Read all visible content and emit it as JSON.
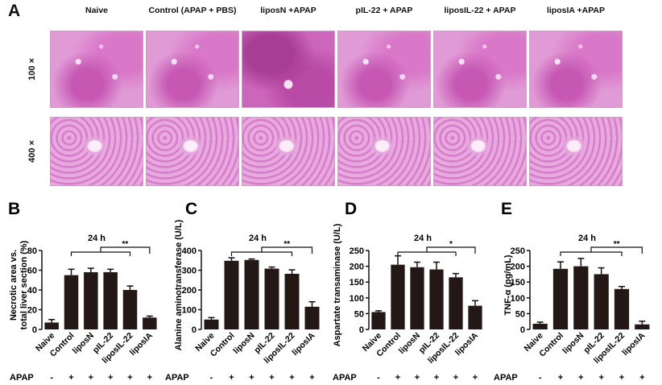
{
  "panel_a": {
    "letter": "A",
    "columns": [
      "Naive",
      "Control (APAP + PBS)",
      "liposN +APAP",
      "pIL-22 + APAP",
      "liposIL-22 + APAP",
      "liposIA +APAP"
    ],
    "rows": [
      "100 ×",
      "400 ×"
    ],
    "image_tint": "#e09ad6"
  },
  "apap": {
    "label": "APAP",
    "marks": [
      "-",
      "+",
      "+",
      "+",
      "+",
      "+"
    ]
  },
  "chart_data": [
    {
      "letter": "B",
      "type": "bar",
      "title": "24 h",
      "ylabel": "Necrotic area vs. total liver section (%)",
      "ylabel_lines": [
        "Necrotic area vs.",
        "total liver section (%)"
      ],
      "categories": [
        "Naive",
        "Control",
        "liposN",
        "pIL-22",
        "liposIL-22",
        "liposIA"
      ],
      "values": [
        7,
        55,
        58,
        58,
        40,
        12
      ],
      "errors": [
        3,
        6,
        4,
        3,
        4,
        1.5
      ],
      "ylim": [
        0,
        80
      ],
      "yticks": [
        0,
        20,
        40,
        60,
        80
      ],
      "significance": "**",
      "bar_color": "#231815"
    },
    {
      "letter": "C",
      "type": "bar",
      "title": "24 h",
      "ylabel": "Alanine aminotransferase (U/L)",
      "ylabel_lines": [
        "Alanine aminotransferase (U/L)"
      ],
      "categories": [
        "Naive",
        "Control",
        "liposN",
        "pIL-22",
        "liposIL-22",
        "liposIA"
      ],
      "values": [
        50,
        348,
        352,
        308,
        282,
        115
      ],
      "errors": [
        10,
        15,
        5,
        8,
        20,
        25
      ],
      "ylim": [
        0,
        400
      ],
      "yticks": [
        0,
        100,
        200,
        300,
        400
      ],
      "significance": "**",
      "bar_color": "#231815"
    },
    {
      "letter": "D",
      "type": "bar",
      "title": "24 h",
      "ylabel": "Aspartate transaminase (U/L)",
      "ylabel_lines": [
        "Aspartate transaminase (U/L)"
      ],
      "categories": [
        "Naive",
        "Control",
        "liposN",
        "pIL-22",
        "liposIL-22",
        "liposIA"
      ],
      "values": [
        55,
        205,
        197,
        190,
        165,
        75
      ],
      "errors": [
        4,
        28,
        16,
        23,
        12,
        16
      ],
      "ylim": [
        0,
        250
      ],
      "yticks": [
        0,
        50,
        100,
        150,
        200,
        250
      ],
      "significance": "*",
      "bar_color": "#231815"
    },
    {
      "letter": "E",
      "type": "bar",
      "title": "24 h",
      "ylabel": "TNF-α (pg/mL)",
      "ylabel_lines": [
        "TNF-α (pg/mL)"
      ],
      "categories": [
        "Naive",
        "Control",
        "liposN",
        "pIL-22",
        "liposIL-22",
        "liposIA"
      ],
      "values": [
        18,
        192,
        200,
        175,
        128,
        16
      ],
      "errors": [
        5,
        22,
        25,
        20,
        8,
        10
      ],
      "ylim": [
        0,
        250
      ],
      "yticks": [
        0,
        50,
        100,
        150,
        200,
        250
      ],
      "significance": "**",
      "bar_color": "#231815"
    }
  ]
}
